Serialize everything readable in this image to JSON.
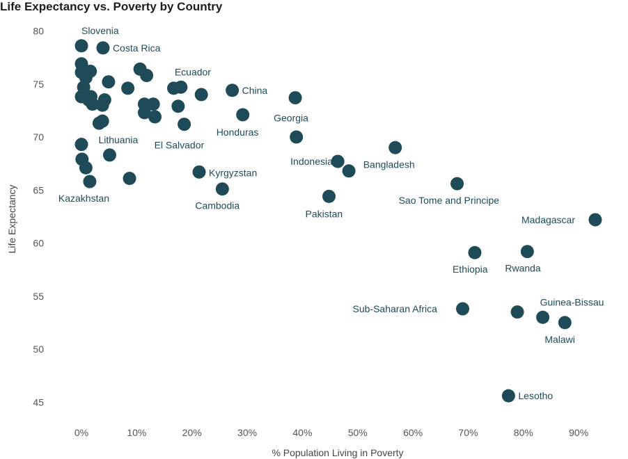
{
  "chart_data": {
    "type": "scatter",
    "title": "Life Expectancy vs. Poverty by Country",
    "xlabel": "% Population Living in Poverty",
    "ylabel": "Life Expectancy",
    "xlim": [
      -0.015,
      0.935
    ],
    "ylim": [
      44,
      82
    ],
    "x_ticks": [
      0,
      0.1,
      0.2,
      0.3,
      0.4,
      0.5,
      0.6,
      0.7,
      0.8,
      0.9
    ],
    "x_tick_labels": [
      "0%",
      "10%",
      "20%",
      "30%",
      "40%",
      "50%",
      "60%",
      "70%",
      "80%",
      "90%"
    ],
    "y_ticks": [
      45,
      50,
      55,
      60,
      65,
      70,
      75,
      80
    ],
    "y_tick_labels": [
      "45",
      "50",
      "55",
      "60",
      "65",
      "70",
      "75",
      "80"
    ],
    "grid": false,
    "marker_color": "#1e4b57",
    "points": [
      {
        "x": 0.0,
        "y": 78.6,
        "label": "Slovenia"
      },
      {
        "x": 0.039,
        "y": 78.4,
        "label": "Costa Rica"
      },
      {
        "x": 0.0,
        "y": 76.9
      },
      {
        "x": 0.016,
        "y": 76.2
      },
      {
        "x": 0.0,
        "y": 76.1
      },
      {
        "x": 0.008,
        "y": 75.6
      },
      {
        "x": 0.106,
        "y": 76.4
      },
      {
        "x": 0.118,
        "y": 75.8
      },
      {
        "x": 0.049,
        "y": 75.2
      },
      {
        "x": 0.004,
        "y": 74.7
      },
      {
        "x": 0.084,
        "y": 74.6
      },
      {
        "x": 0.167,
        "y": 74.6
      },
      {
        "x": 0.18,
        "y": 74.7,
        "label": "Ecuador"
      },
      {
        "x": 0.273,
        "y": 74.4,
        "label": "China"
      },
      {
        "x": 0.217,
        "y": 74.0
      },
      {
        "x": 0.0,
        "y": 73.8
      },
      {
        "x": 0.017,
        "y": 73.8
      },
      {
        "x": 0.013,
        "y": 73.5
      },
      {
        "x": 0.042,
        "y": 73.5
      },
      {
        "x": 0.02,
        "y": 73.1
      },
      {
        "x": 0.038,
        "y": 73.0
      },
      {
        "x": 0.114,
        "y": 73.1
      },
      {
        "x": 0.13,
        "y": 73.1
      },
      {
        "x": 0.175,
        "y": 72.9
      },
      {
        "x": 0.387,
        "y": 73.7,
        "label": "Georgia"
      },
      {
        "x": 0.114,
        "y": 72.3
      },
      {
        "x": 0.133,
        "y": 71.9
      },
      {
        "x": 0.292,
        "y": 72.1,
        "label": "Honduras"
      },
      {
        "x": 0.038,
        "y": 71.5
      },
      {
        "x": 0.032,
        "y": 71.3
      },
      {
        "x": 0.186,
        "y": 71.2,
        "label": "El Salvador"
      },
      {
        "x": 0.389,
        "y": 70.0
      },
      {
        "x": 0.568,
        "y": 69.0,
        "label": "Bangladesh"
      },
      {
        "x": 0.0,
        "y": 69.3
      },
      {
        "x": 0.051,
        "y": 68.3,
        "label": "Lithuania"
      },
      {
        "x": 0.001,
        "y": 67.9
      },
      {
        "x": 0.008,
        "y": 67.1
      },
      {
        "x": 0.464,
        "y": 67.7,
        "label": "Indonesia"
      },
      {
        "x": 0.484,
        "y": 66.8
      },
      {
        "x": 0.213,
        "y": 66.7,
        "label": "Kyrgyzstan"
      },
      {
        "x": 0.087,
        "y": 66.1
      },
      {
        "x": 0.015,
        "y": 65.8,
        "label": "Kazakhstan"
      },
      {
        "x": 0.255,
        "y": 65.1,
        "label": "Cambodia"
      },
      {
        "x": 0.448,
        "y": 64.4,
        "label": "Pakistan"
      },
      {
        "x": 0.68,
        "y": 65.6,
        "label": "Sao Tome and Principe"
      },
      {
        "x": 0.93,
        "y": 62.2,
        "label": "Madagascar"
      },
      {
        "x": 0.712,
        "y": 59.1,
        "label": "Ethiopia"
      },
      {
        "x": 0.807,
        "y": 59.2,
        "label": "Rwanda"
      },
      {
        "x": 0.69,
        "y": 53.8,
        "label": "Sub-Saharan Africa"
      },
      {
        "x": 0.789,
        "y": 53.5
      },
      {
        "x": 0.835,
        "y": 53.0,
        "label": "Guinea-Bissau"
      },
      {
        "x": 0.875,
        "y": 52.5,
        "label": "Malawi"
      },
      {
        "x": 0.773,
        "y": 45.6,
        "label": "Lesotho"
      }
    ]
  }
}
